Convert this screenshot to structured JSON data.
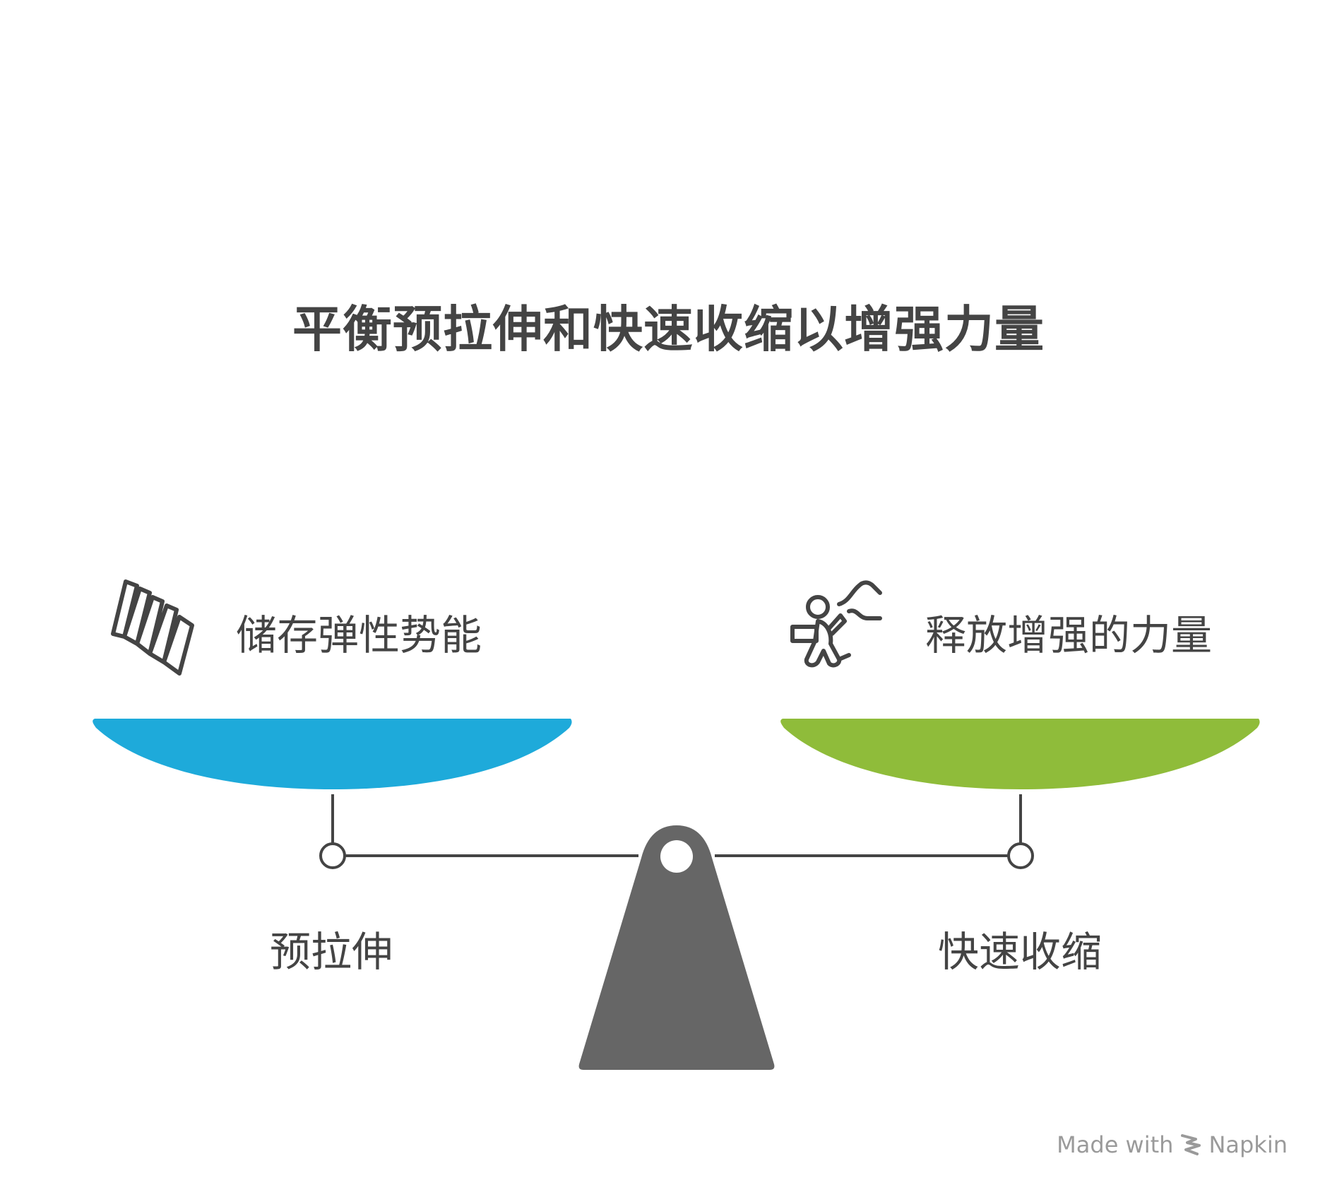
{
  "title": "平衡预拉伸和快速收缩以增强力量",
  "left": {
    "top_label": "储存弹性势能",
    "bottom_label": "预拉伸",
    "icon": "spring-icon",
    "color": "#1EAADA"
  },
  "right": {
    "top_label": "释放增强的力量",
    "bottom_label": "快速收缩",
    "icon": "person-carrying-box-icon",
    "color": "#8FBC3A"
  },
  "fulcrum_color": "#666666",
  "footer": {
    "made_with": "Made with",
    "brand": "Napkin",
    "icon": "napkin-logo-icon"
  }
}
